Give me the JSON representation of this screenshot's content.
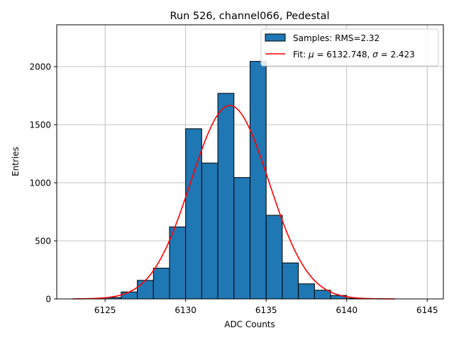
{
  "chart_data": {
    "type": "bar",
    "title": "Run 526, channel066, Pedestal",
    "xlabel": "ADC Counts",
    "ylabel": "Entries",
    "xlim": [
      6122,
      6146
    ],
    "ylim": [
      0,
      2360
    ],
    "xticks": [
      6125,
      6130,
      6135,
      6140,
      6145
    ],
    "yticks": [
      0,
      500,
      1000,
      1500,
      2000
    ],
    "grid": true,
    "legend_position": "top-right",
    "bin_width": 1,
    "bins": [
      {
        "left": 6125,
        "value": 12
      },
      {
        "left": 6126,
        "value": 60
      },
      {
        "left": 6127,
        "value": 160
      },
      {
        "left": 6128,
        "value": 265
      },
      {
        "left": 6129,
        "value": 620
      },
      {
        "left": 6130,
        "value": 1465
      },
      {
        "left": 6131,
        "value": 1170
      },
      {
        "left": 6132,
        "value": 1770
      },
      {
        "left": 6133,
        "value": 1045
      },
      {
        "left": 6134,
        "value": 2045
      },
      {
        "left": 6135,
        "value": 720
      },
      {
        "left": 6136,
        "value": 310
      },
      {
        "left": 6137,
        "value": 130
      },
      {
        "left": 6138,
        "value": 75
      },
      {
        "left": 6139,
        "value": 30
      },
      {
        "left": 6140,
        "value": 5
      }
    ],
    "fit": {
      "mu": 6132.748,
      "sigma": 2.423,
      "amplitude": 1665,
      "x_range": [
        6123,
        6143
      ]
    },
    "legend": {
      "samples_label": "Samples: RMS=2.32",
      "fit_prefix": "Fit: ",
      "mu_symbol": "μ",
      "mu_text": " = 6132.748, ",
      "sigma_symbol": "σ",
      "sigma_text": " = 2.423"
    },
    "colors": {
      "bar": "#1f77b4",
      "fit": "#ff0000",
      "grid": "#b0b0b0"
    }
  }
}
